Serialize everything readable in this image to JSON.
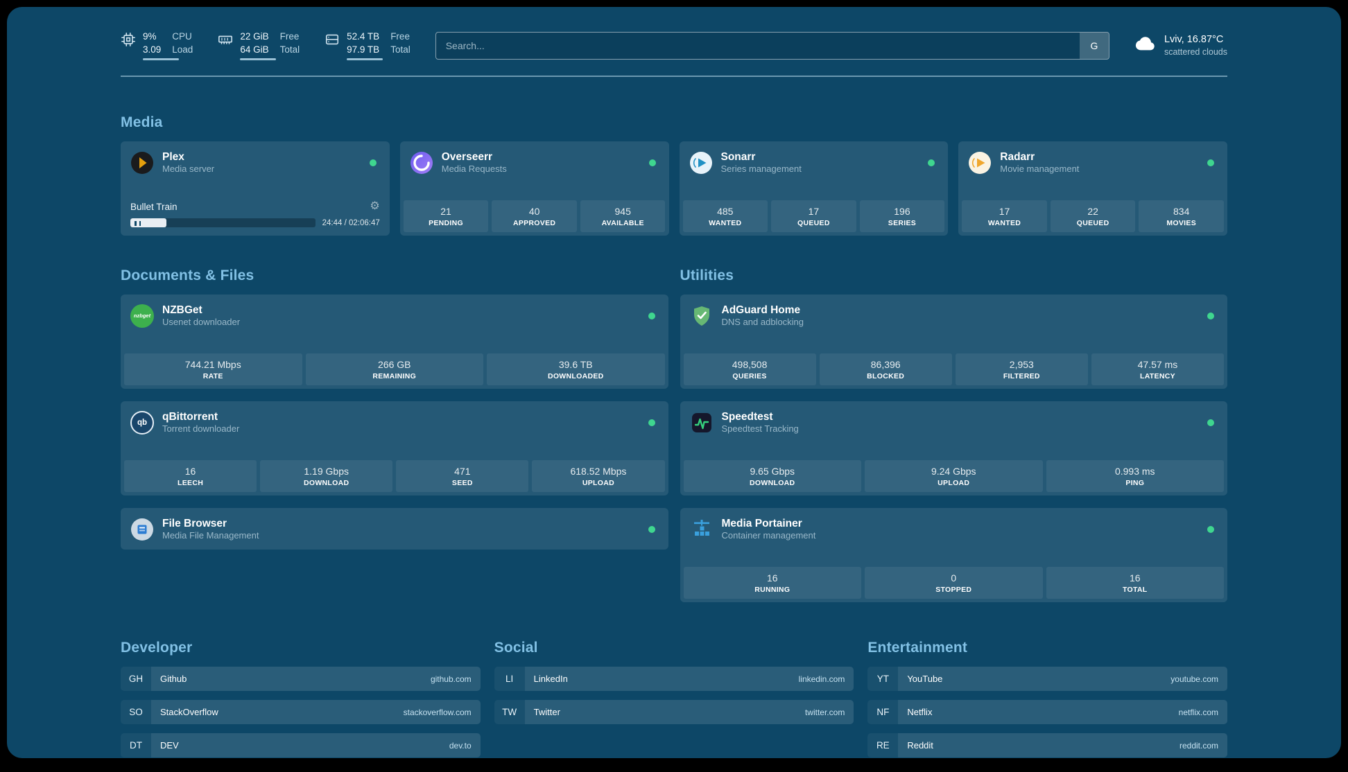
{
  "theme": {
    "background": "#0d4767",
    "heading": "#82c1e5",
    "status_green": "#3fd68f"
  },
  "icons": {
    "gear": "⚙",
    "nzbget_wordmark": "nzbget",
    "qbittorrent_monogram": "qb"
  },
  "header": {
    "resources": [
      {
        "name": "cpu",
        "values": [
          "9%",
          "3.09"
        ],
        "labels": [
          "CPU",
          "Load"
        ]
      },
      {
        "name": "memory",
        "values": [
          "22 GiB",
          "64 GiB"
        ],
        "labels": [
          "Free",
          "Total"
        ]
      },
      {
        "name": "disk",
        "values": [
          "52.4 TB",
          "97.9 TB"
        ],
        "labels": [
          "Free",
          "Total"
        ]
      }
    ],
    "search": {
      "placeholder": "Search...",
      "provider_label": "G"
    },
    "weather": {
      "location": "Lviv, 16.87°C",
      "condition": "scattered clouds"
    }
  },
  "sections": {
    "media": {
      "title": "Media",
      "cards": [
        {
          "name": "Plex",
          "description": "Media server",
          "player": {
            "title": "Bullet Train",
            "time": "24:44 / 02:06:47",
            "progress_pct": 19.5
          }
        },
        {
          "name": "Overseerr",
          "description": "Media Requests",
          "stats": [
            {
              "value": "21",
              "label": "PENDING"
            },
            {
              "value": "40",
              "label": "APPROVED"
            },
            {
              "value": "945",
              "label": "AVAILABLE"
            }
          ]
        },
        {
          "name": "Sonarr",
          "description": "Series management",
          "stats": [
            {
              "value": "485",
              "label": "WANTED"
            },
            {
              "value": "17",
              "label": "QUEUED"
            },
            {
              "value": "196",
              "label": "SERIES"
            }
          ]
        },
        {
          "name": "Radarr",
          "description": "Movie management",
          "stats": [
            {
              "value": "17",
              "label": "WANTED"
            },
            {
              "value": "22",
              "label": "QUEUED"
            },
            {
              "value": "834",
              "label": "MOVIES"
            }
          ]
        }
      ]
    },
    "documents": {
      "title": "Documents & Files",
      "cards": [
        {
          "name": "NZBGet",
          "description": "Usenet downloader",
          "stats": [
            {
              "value": "744.21 Mbps",
              "label": "RATE"
            },
            {
              "value": "266 GB",
              "label": "REMAINING"
            },
            {
              "value": "39.6 TB",
              "label": "DOWNLOADED"
            }
          ]
        },
        {
          "name": "qBittorrent",
          "description": "Torrent downloader",
          "stats": [
            {
              "value": "16",
              "label": "LEECH"
            },
            {
              "value": "1.19 Gbps",
              "label": "DOWNLOAD"
            },
            {
              "value": "471",
              "label": "SEED"
            },
            {
              "value": "618.52 Mbps",
              "label": "UPLOAD"
            }
          ]
        },
        {
          "name": "File Browser",
          "description": "Media File Management",
          "stats": []
        }
      ]
    },
    "utilities": {
      "title": "Utilities",
      "cards": [
        {
          "name": "AdGuard Home",
          "description": "DNS and adblocking",
          "stats": [
            {
              "value": "498,508",
              "label": "QUERIES"
            },
            {
              "value": "86,396",
              "label": "BLOCKED"
            },
            {
              "value": "2,953",
              "label": "FILTERED"
            },
            {
              "value": "47.57 ms",
              "label": "LATENCY"
            }
          ]
        },
        {
          "name": "Speedtest",
          "description": "Speedtest Tracking",
          "stats": [
            {
              "value": "9.65 Gbps",
              "label": "DOWNLOAD"
            },
            {
              "value": "9.24 Gbps",
              "label": "UPLOAD"
            },
            {
              "value": "0.993 ms",
              "label": "PING"
            }
          ]
        },
        {
          "name": "Media Portainer",
          "description": "Container management",
          "stats": [
            {
              "value": "16",
              "label": "RUNNING"
            },
            {
              "value": "0",
              "label": "STOPPED"
            },
            {
              "value": "16",
              "label": "TOTAL"
            }
          ]
        }
      ]
    }
  },
  "bookmarks": [
    {
      "title": "Developer",
      "items": [
        {
          "abbr": "GH",
          "name": "Github",
          "url": "github.com"
        },
        {
          "abbr": "SO",
          "name": "StackOverflow",
          "url": "stackoverflow.com"
        },
        {
          "abbr": "DT",
          "name": "DEV",
          "url": "dev.to"
        }
      ]
    },
    {
      "title": "Social",
      "items": [
        {
          "abbr": "LI",
          "name": "LinkedIn",
          "url": "linkedin.com"
        },
        {
          "abbr": "TW",
          "name": "Twitter",
          "url": "twitter.com"
        }
      ]
    },
    {
      "title": "Entertainment",
      "items": [
        {
          "abbr": "YT",
          "name": "YouTube",
          "url": "youtube.com"
        },
        {
          "abbr": "NF",
          "name": "Netflix",
          "url": "netflix.com"
        },
        {
          "abbr": "RE",
          "name": "Reddit",
          "url": "reddit.com"
        }
      ]
    }
  ]
}
